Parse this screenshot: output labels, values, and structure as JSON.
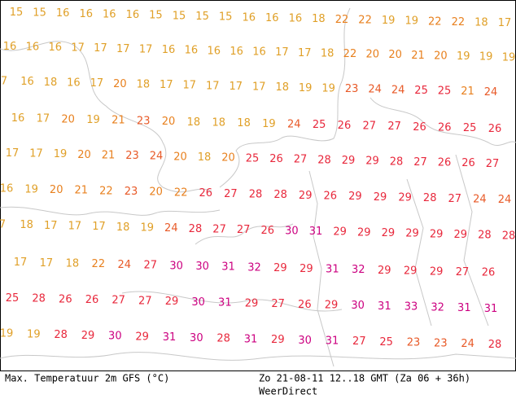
{
  "map": {
    "rows": [
      [
        15,
        15,
        16,
        16,
        16,
        16,
        15,
        15,
        15,
        15,
        16,
        16,
        16,
        18,
        22,
        22,
        19,
        19,
        22,
        22,
        18,
        17
      ],
      [
        16,
        16,
        16,
        17,
        17,
        17,
        17,
        16,
        16,
        16,
        16,
        16,
        17,
        17,
        18,
        22,
        20,
        20,
        21,
        20,
        19,
        19,
        19
      ],
      [
        7,
        16,
        18,
        16,
        17,
        20,
        18,
        17,
        17,
        17,
        17,
        17,
        18,
        19,
        19,
        23,
        24,
        24,
        25,
        25,
        21,
        24
      ],
      [
        16,
        17,
        20,
        19,
        21,
        23,
        20,
        18,
        18,
        18,
        19,
        24,
        25,
        26,
        27,
        27,
        26,
        26,
        25,
        26
      ],
      [
        17,
        17,
        19,
        20,
        21,
        23,
        24,
        20,
        18,
        20,
        25,
        26,
        27,
        28,
        29,
        29,
        28,
        27,
        26,
        26,
        27
      ],
      [
        16,
        19,
        20,
        21,
        22,
        23,
        20,
        22,
        26,
        27,
        28,
        28,
        29,
        26,
        29,
        29,
        29,
        28,
        27,
        24,
        24
      ],
      [
        7,
        18,
        17,
        17,
        17,
        18,
        19,
        24,
        28,
        27,
        27,
        26,
        30,
        31,
        29,
        29,
        29,
        29,
        29,
        29,
        28,
        28
      ],
      [
        17,
        17,
        18,
        22,
        24,
        27,
        30,
        30,
        31,
        32,
        29,
        29,
        31,
        32,
        29,
        29,
        29,
        27,
        26
      ],
      [
        25,
        28,
        26,
        26,
        27,
        27,
        29,
        30,
        31,
        29,
        27,
        26,
        29,
        30,
        31,
        33,
        32,
        31,
        31
      ],
      [
        19,
        19,
        28,
        29,
        30,
        29,
        31,
        30,
        28,
        31,
        29,
        30,
        31,
        27,
        25,
        23,
        23,
        24,
        28
      ]
    ],
    "footer": {
      "left": "Max. Temperatuur 2m GFS (°C)",
      "right": "Zo 21-08-11 12..18 GMT (Za 06 + 36h)",
      "credit": "WeerDirect"
    }
  }
}
